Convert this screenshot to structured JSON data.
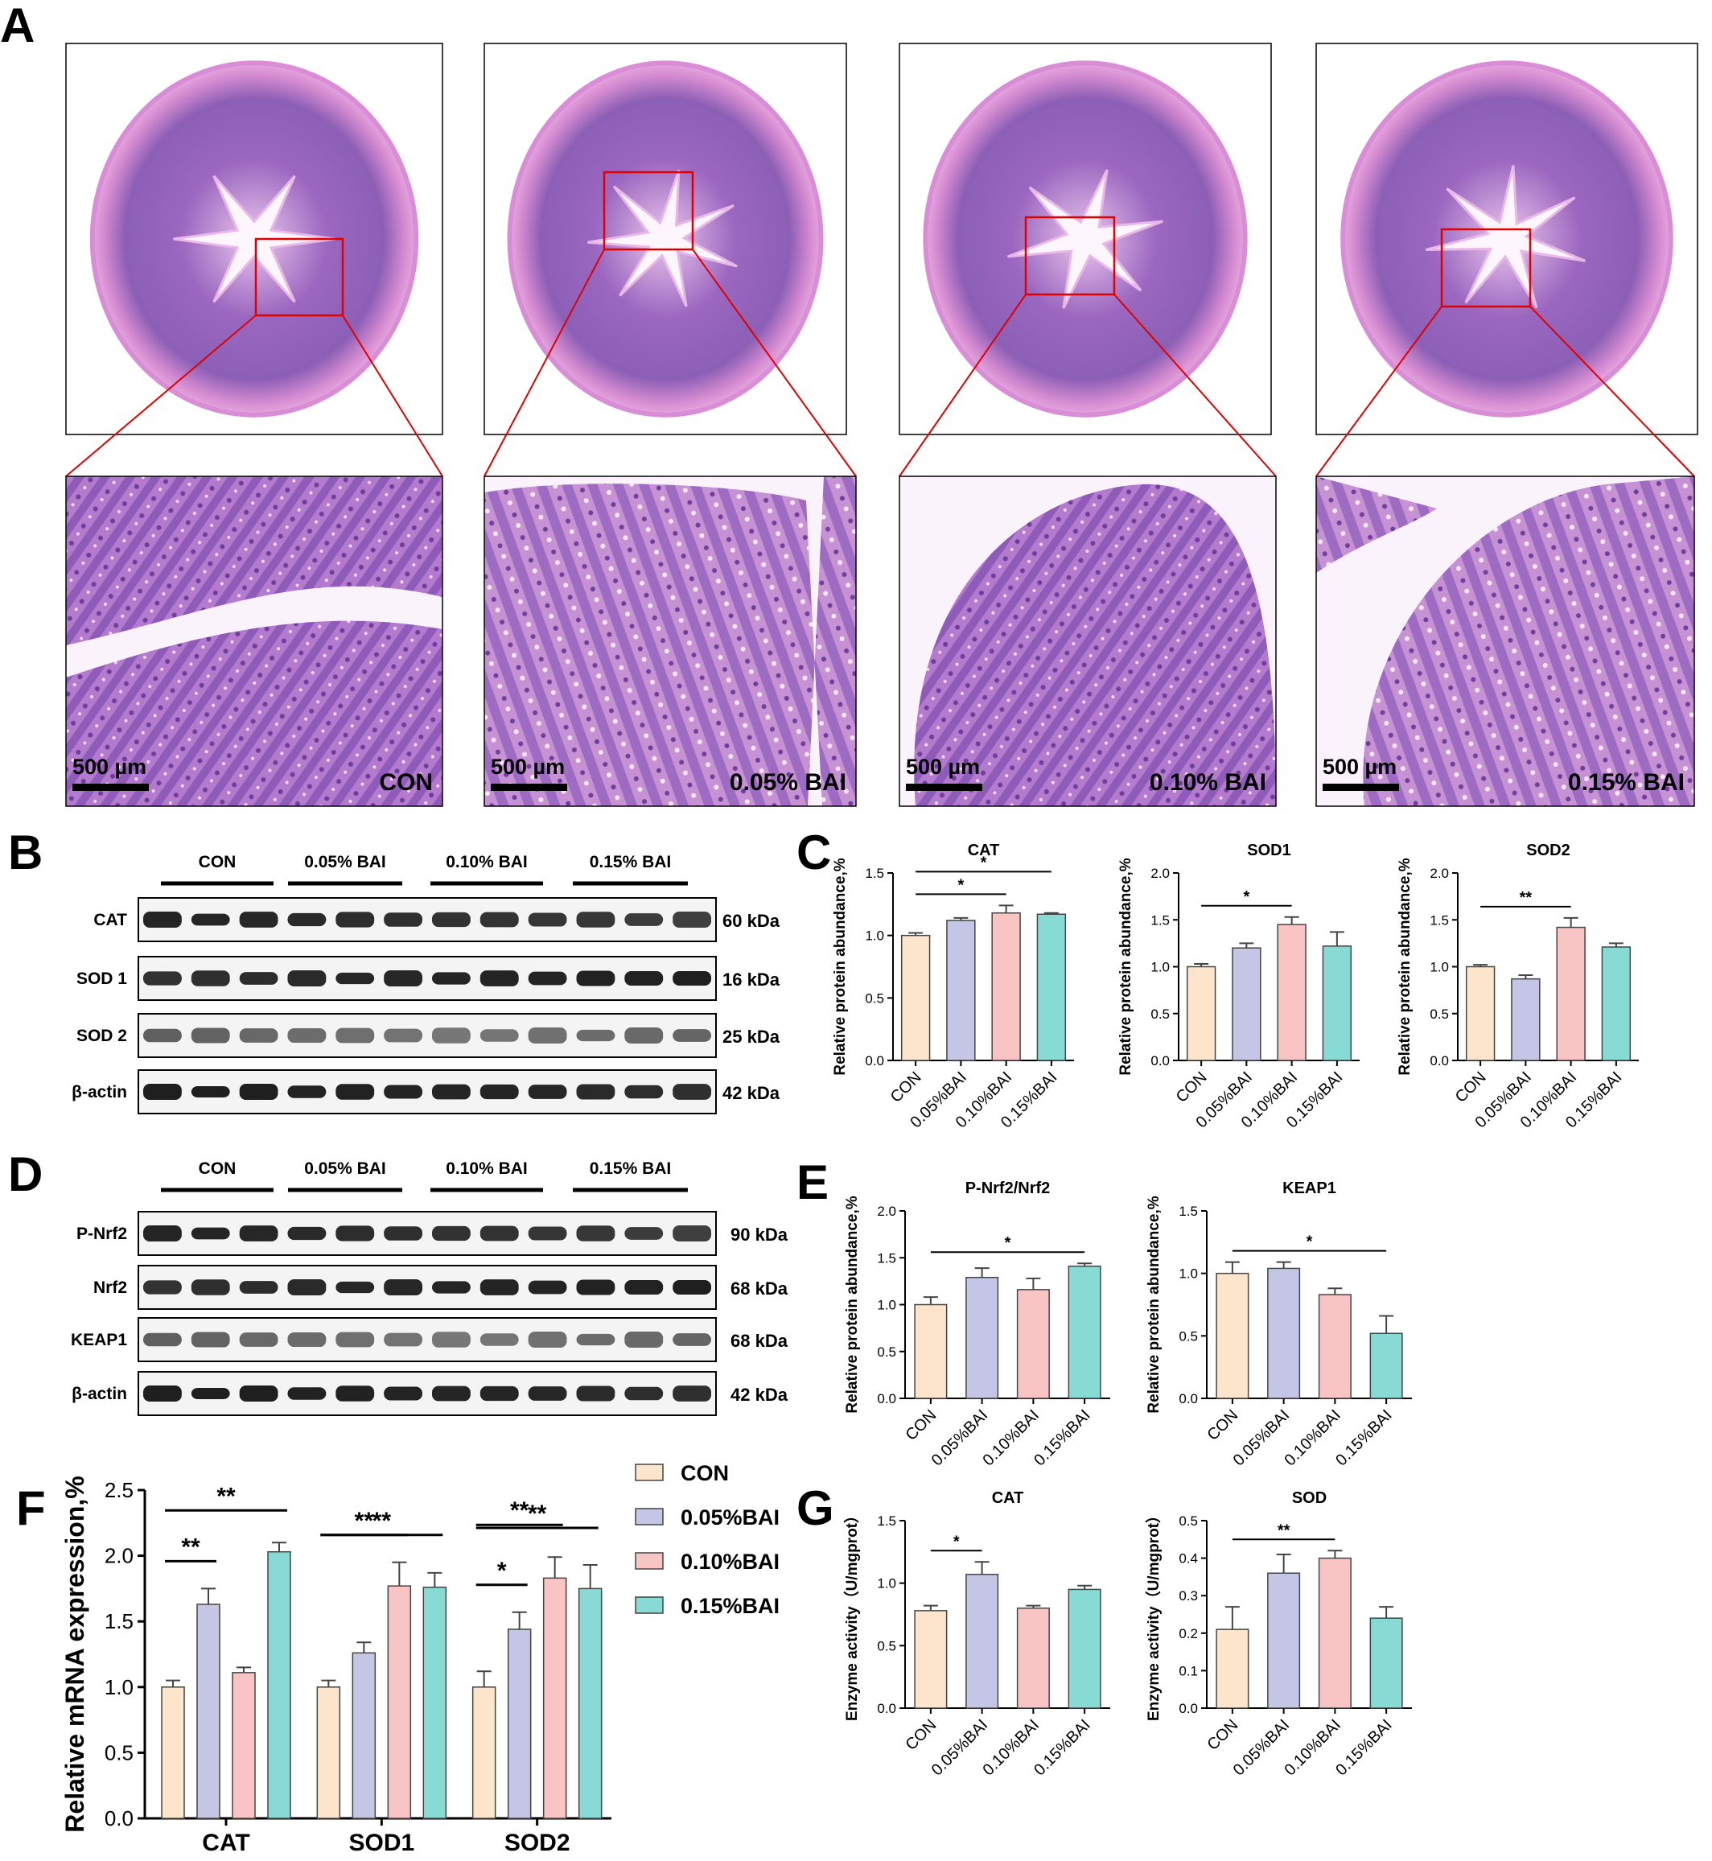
{
  "panels": {
    "A": "A",
    "B": "B",
    "C": "C",
    "D": "D",
    "E": "E",
    "F": "F",
    "G": "G"
  },
  "colors": {
    "con": "#FDE5CC",
    "bai005": "#C5C6E6",
    "bai010": "#F8C4C4",
    "bai015": "#88DBD5",
    "stroke": "#444444",
    "tissue": "#B868C2",
    "tissue_dark": "#8A55B5",
    "roi": "#E00000"
  },
  "histology": {
    "scale_bar": "500 µm",
    "groups": [
      "CON",
      "0.05% BAI",
      "0.10% BAI",
      "0.15% BAI"
    ]
  },
  "western_b": {
    "groups": [
      "CON",
      "0.05% BAI",
      "0.10% BAI",
      "0.15% BAI"
    ],
    "bands": [
      {
        "name": "CAT",
        "kda": "60 kDa"
      },
      {
        "name": "SOD 1",
        "kda": "16 kDa"
      },
      {
        "name": "SOD 2",
        "kda": "25 kDa"
      },
      {
        "name": "β-actin",
        "kda": "42 kDa"
      }
    ]
  },
  "western_d": {
    "groups": [
      "CON",
      "0.05% BAI",
      "0.10% BAI",
      "0.15% BAI"
    ],
    "bands": [
      {
        "name": "P-Nrf2",
        "kda": "90 kDa"
      },
      {
        "name": "Nrf2",
        "kda": "68 kDa"
      },
      {
        "name": "KEAP1",
        "kda": "68 kDa"
      },
      {
        "name": "β-actin",
        "kda": "42 kDa"
      }
    ]
  },
  "chart_data": [
    {
      "panel": "C",
      "type": "bar",
      "title": "CAT",
      "ylabel": "Relative protein abundance,%",
      "categories": [
        "CON",
        "0.05%BAI",
        "0.10%BAI",
        "0.15%BAI"
      ],
      "values": [
        1.0,
        1.12,
        1.18,
        1.17
      ],
      "errors": [
        0.02,
        0.02,
        0.06,
        0.01
      ],
      "ylim": [
        0,
        1.5
      ],
      "yticks": [
        "0.0",
        "0.5",
        "1.0",
        "1.5"
      ],
      "significance": [
        {
          "from": 0,
          "to": 2,
          "label": "*"
        },
        {
          "from": 0,
          "to": 3,
          "label": "*"
        }
      ]
    },
    {
      "panel": "C",
      "type": "bar",
      "title": "SOD1",
      "ylabel": "Relative protein abundance,%",
      "categories": [
        "CON",
        "0.05%BAI",
        "0.10%BAI",
        "0.15%BAI"
      ],
      "values": [
        1.0,
        1.2,
        1.45,
        1.22
      ],
      "errors": [
        0.03,
        0.05,
        0.08,
        0.15
      ],
      "ylim": [
        0,
        2.0
      ],
      "yticks": [
        "0.0",
        "0.5",
        "1.0",
        "1.5",
        "2.0"
      ],
      "significance": [
        {
          "from": 0,
          "to": 2,
          "label": "*"
        }
      ]
    },
    {
      "panel": "C",
      "type": "bar",
      "title": "SOD2",
      "ylabel": "Relative protein abundance,%",
      "categories": [
        "CON",
        "0.05%BAI",
        "0.10%BAI",
        "0.15%BAI"
      ],
      "values": [
        1.0,
        0.87,
        1.42,
        1.21
      ],
      "errors": [
        0.02,
        0.04,
        0.1,
        0.04
      ],
      "ylim": [
        0,
        2.0
      ],
      "yticks": [
        "0.0",
        "0.5",
        "1.0",
        "1.5",
        "2.0"
      ],
      "significance": [
        {
          "from": 0,
          "to": 2,
          "label": "**"
        }
      ]
    },
    {
      "panel": "E",
      "type": "bar",
      "title": "P-Nrf2/Nrf2",
      "ylabel": "Relative protein abundance,%",
      "categories": [
        "CON",
        "0.05%BAI",
        "0.10%BAI",
        "0.15%BAI"
      ],
      "values": [
        1.0,
        1.29,
        1.16,
        1.41
      ],
      "errors": [
        0.08,
        0.1,
        0.12,
        0.03
      ],
      "ylim": [
        0,
        2.0
      ],
      "yticks": [
        "0.0",
        "0.5",
        "1.0",
        "1.5",
        "2.0"
      ],
      "significance": [
        {
          "from": 0,
          "to": 3,
          "label": "*"
        }
      ]
    },
    {
      "panel": "E",
      "type": "bar",
      "title": "KEAP1",
      "ylabel": "Relative protein abundance,%",
      "categories": [
        "CON",
        "0.05%BAI",
        "0.10%BAI",
        "0.15%BAI"
      ],
      "values": [
        1.0,
        1.04,
        0.83,
        0.52
      ],
      "errors": [
        0.09,
        0.05,
        0.05,
        0.14
      ],
      "ylim": [
        0,
        1.5
      ],
      "yticks": [
        "0.0",
        "0.5",
        "1.0",
        "1.5"
      ],
      "significance": [
        {
          "from": 0,
          "to": 3,
          "label": "*"
        }
      ]
    },
    {
      "panel": "F",
      "type": "bar",
      "ylabel": "Relative mRNA expression,%",
      "categories": [
        "CAT",
        "SOD1",
        "SOD2"
      ],
      "series": [
        {
          "name": "CON",
          "values": [
            1.0,
            1.0,
            1.0
          ],
          "errors": [
            0.05,
            0.05,
            0.12
          ]
        },
        {
          "name": "0.05%BAI",
          "values": [
            1.63,
            1.26,
            1.44
          ],
          "errors": [
            0.12,
            0.08,
            0.13
          ]
        },
        {
          "name": "0.10%BAI",
          "values": [
            1.11,
            1.77,
            1.83
          ],
          "errors": [
            0.04,
            0.18,
            0.16
          ]
        },
        {
          "name": "0.15%BAI",
          "values": [
            2.03,
            1.76,
            1.75
          ],
          "errors": [
            0.07,
            0.11,
            0.18
          ]
        }
      ],
      "ylim": [
        0,
        2.5
      ],
      "yticks": [
        "0.0",
        "0.5",
        "1.0",
        "1.5",
        "2.0",
        "2.5"
      ],
      "legend": "top-right",
      "significance": [
        {
          "group": 0,
          "from": 0,
          "to": 1,
          "label": "**"
        },
        {
          "group": 0,
          "from": 0,
          "to": 3,
          "label": "**"
        },
        {
          "group": 1,
          "from": 0,
          "to": 2,
          "label": "**"
        },
        {
          "group": 1,
          "from": 0,
          "to": 3,
          "label": "**"
        },
        {
          "group": 2,
          "from": 0,
          "to": 1,
          "label": "*"
        },
        {
          "group": 2,
          "from": 0,
          "to": 2,
          "label": "**"
        },
        {
          "group": 2,
          "from": 0,
          "to": 3,
          "label": "**"
        }
      ]
    },
    {
      "panel": "G",
      "type": "bar",
      "title": "CAT",
      "ylabel": "Enzyme activity（U/mgprot）",
      "categories": [
        "CON",
        "0.05%BAI",
        "0.10%BAI",
        "0.15%BAI"
      ],
      "values": [
        0.78,
        1.07,
        0.8,
        0.95
      ],
      "errors": [
        0.04,
        0.1,
        0.02,
        0.03
      ],
      "ylim": [
        0,
        1.5
      ],
      "yticks": [
        "0.0",
        "0.5",
        "1.0",
        "1.5"
      ],
      "significance": [
        {
          "from": 0,
          "to": 1,
          "label": "*"
        }
      ]
    },
    {
      "panel": "G",
      "type": "bar",
      "title": "SOD",
      "ylabel": "Enzyme activity（U/mgprot）",
      "categories": [
        "CON",
        "0.05%BAI",
        "0.10%BAI",
        "0.15%BAI"
      ],
      "values": [
        0.21,
        0.36,
        0.4,
        0.24
      ],
      "errors": [
        0.06,
        0.05,
        0.02,
        0.03
      ],
      "ylim": [
        0,
        0.5
      ],
      "yticks": [
        "0.0",
        "0.1",
        "0.2",
        "0.3",
        "0.4",
        "0.5"
      ],
      "significance": [
        {
          "from": 0,
          "to": 2,
          "label": "**"
        }
      ]
    }
  ]
}
